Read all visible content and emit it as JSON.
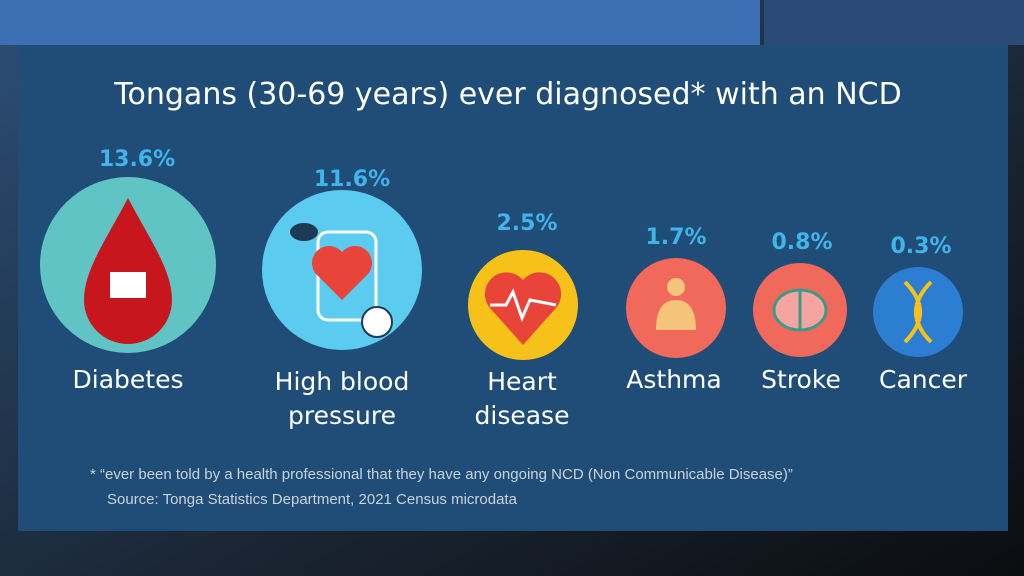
{
  "title": "Tongans (30-69 years) ever diagnosed* with an NCD",
  "items": [
    {
      "value": "13.6%",
      "label": [
        "Diabetes"
      ]
    },
    {
      "value": "11.6%",
      "label": [
        "High blood",
        "pressure"
      ]
    },
    {
      "value": "2.5%",
      "label": [
        "Heart",
        "disease"
      ]
    },
    {
      "value": "1.7%",
      "label": [
        "Asthma"
      ]
    },
    {
      "value": "0.8%",
      "label": [
        "Stroke"
      ]
    },
    {
      "value": "0.3%",
      "label": [
        "Cancer"
      ]
    }
  ],
  "footnote": [
    "* “ever been told by a health professional that they have any ongoing NCD (Non Communicable Disease)”",
    "Source: Tonga Statistics Department, 2021 Census microdata"
  ]
}
